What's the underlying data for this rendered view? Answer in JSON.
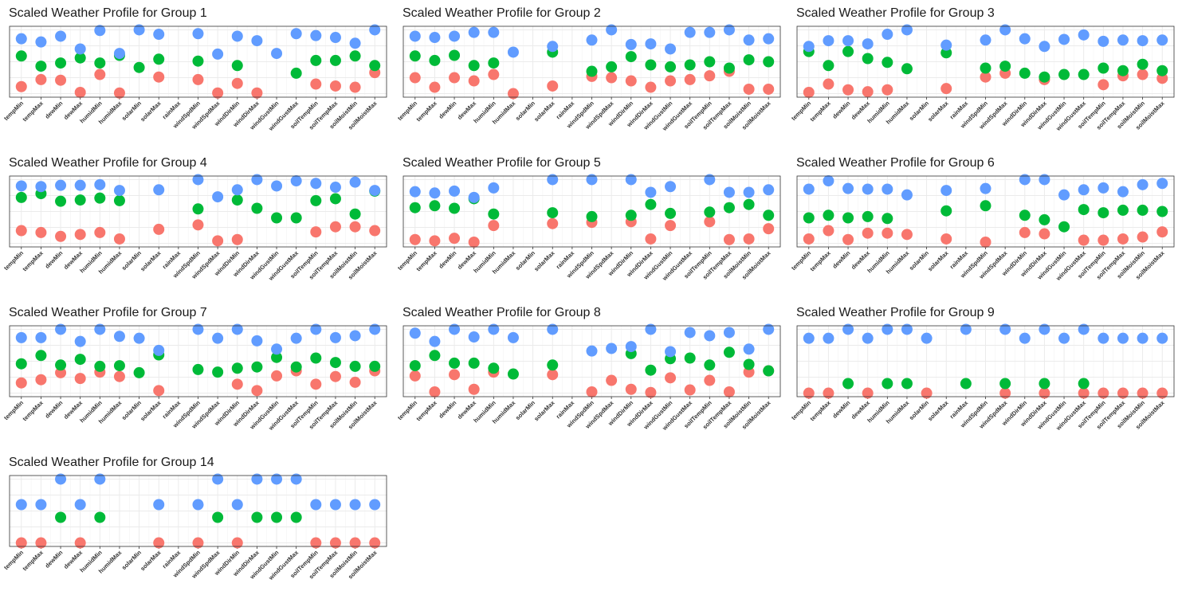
{
  "chart_data": [
    {
      "type": "dot",
      "title": "Scaled Weather Profile for Group 1",
      "categories": [
        "tempMin",
        "tempMax",
        "dewMin",
        "dewMax",
        "humidMin",
        "humidMax",
        "solarMin",
        "solarMax",
        "rainMax",
        "windSpdMin",
        "windSpdMax",
        "windDirMin",
        "windDirMax",
        "windGustMin",
        "windGustMax",
        "soilTempMin",
        "soilTempMax",
        "soilMoistMin",
        "soilMoistMax"
      ],
      "series": [
        {
          "color": "#F8766D",
          "values": [
            0.11,
            0.22,
            0.21,
            0.02,
            0.3,
            0.01,
            null,
            0.26,
            null,
            0.22,
            0.01,
            0.16,
            0.01,
            null,
            null,
            0.15,
            0.12,
            0.1,
            0.33
          ]
        },
        {
          "color": "#00BA38",
          "values": [
            0.59,
            0.43,
            0.48,
            0.56,
            0.48,
            0.6,
            0.41,
            0.54,
            null,
            0.51,
            null,
            0.44,
            null,
            null,
            0.32,
            0.52,
            0.52,
            0.59,
            0.44
          ]
        },
        {
          "color": "#619CFF",
          "values": [
            0.86,
            0.81,
            0.9,
            0.7,
            0.99,
            0.63,
            1.0,
            0.93,
            null,
            0.94,
            0.62,
            0.9,
            0.83,
            0.63,
            0.94,
            0.91,
            0.88,
            0.79,
            1.0
          ]
        }
      ],
      "ylim": [
        0,
        1
      ],
      "yticks": [
        0,
        0.25,
        0.5,
        0.75,
        1
      ],
      "grid": true
    },
    {
      "type": "dot",
      "title": "Scaled Weather Profile for Group 2",
      "categories": [
        "tempMin",
        "tempMax",
        "dewMin",
        "dewMax",
        "humidMin",
        "humidMax",
        "solarMin",
        "solarMax",
        "rainMax",
        "windSpdMin",
        "windSpdMax",
        "windDirMin",
        "windDirMax",
        "windGustMin",
        "windGustMax",
        "soilTempMin",
        "soilTempMax",
        "soilMoistMin",
        "soilMoistMax"
      ],
      "series": [
        {
          "color": "#F8766D",
          "values": [
            0.25,
            0.1,
            0.25,
            0.2,
            0.3,
            0.0,
            null,
            0.12,
            null,
            0.27,
            0.25,
            0.2,
            0.1,
            0.2,
            0.22,
            0.28,
            0.35,
            0.07,
            0.07
          ]
        },
        {
          "color": "#00BA38",
          "values": [
            0.59,
            0.52,
            0.6,
            0.44,
            0.48,
            null,
            null,
            0.65,
            null,
            0.35,
            0.42,
            0.58,
            0.45,
            0.42,
            0.45,
            0.5,
            0.4,
            0.53,
            0.5
          ]
        },
        {
          "color": "#619CFF",
          "values": [
            0.9,
            0.88,
            0.9,
            0.96,
            0.96,
            0.65,
            null,
            0.74,
            null,
            0.84,
            1.0,
            0.77,
            0.78,
            0.7,
            0.96,
            0.96,
            1.0,
            0.84,
            0.86
          ]
        }
      ],
      "ylim": [
        0,
        1
      ],
      "yticks": [
        0,
        0.25,
        0.5,
        0.75,
        1
      ],
      "grid": true
    },
    {
      "type": "dot",
      "title": "Scaled Weather Profile for Group 3",
      "categories": [
        "tempMin",
        "tempMax",
        "dewMin",
        "dewMax",
        "humidMin",
        "humidMax",
        "solarMin",
        "solarMax",
        "rainMax",
        "windSpdMin",
        "windSpdMax",
        "windDirMin",
        "windDirMax",
        "windGustMin",
        "windGustMax",
        "soilTempMin",
        "soilTempMax",
        "soilMoistMin",
        "soilMoistMax"
      ],
      "series": [
        {
          "color": "#F8766D",
          "values": [
            0.02,
            0.15,
            0.06,
            0.03,
            0.06,
            null,
            null,
            0.08,
            null,
            0.26,
            0.32,
            null,
            0.22,
            null,
            null,
            0.14,
            0.28,
            0.3,
            0.24
          ]
        },
        {
          "color": "#00BA38",
          "values": [
            0.66,
            0.44,
            0.66,
            0.55,
            0.49,
            0.39,
            null,
            0.64,
            null,
            0.4,
            0.43,
            0.32,
            0.26,
            0.3,
            0.3,
            0.4,
            0.36,
            0.46,
            0.36
          ]
        },
        {
          "color": "#619CFF",
          "values": [
            0.74,
            0.83,
            0.83,
            0.78,
            0.93,
            1.0,
            null,
            0.76,
            null,
            0.84,
            1.0,
            0.86,
            0.74,
            0.85,
            0.92,
            0.82,
            0.84,
            0.83,
            0.84
          ]
        }
      ],
      "ylim": [
        0,
        1
      ],
      "yticks": [
        0,
        0.25,
        0.5,
        0.75,
        1
      ],
      "grid": true
    },
    {
      "type": "dot",
      "title": "Scaled Weather Profile for Group 4",
      "categories": [
        "tempMin",
        "tempMax",
        "dewMin",
        "dewMax",
        "humidMin",
        "humidMax",
        "solarMin",
        "solarMax",
        "rainMax",
        "windSpdMin",
        "windSpdMax",
        "windDirMin",
        "windDirMax",
        "windGustMin",
        "windGustMax",
        "soilTempMin",
        "soilTempMax",
        "soilMoistMin",
        "soilMoistMax"
      ],
      "series": [
        {
          "color": "#F8766D",
          "values": [
            0.2,
            0.17,
            0.11,
            0.14,
            0.17,
            0.07,
            null,
            0.22,
            null,
            0.29,
            0.04,
            0.06,
            null,
            null,
            null,
            0.18,
            0.26,
            0.26,
            0.2
          ]
        },
        {
          "color": "#00BA38",
          "values": [
            0.72,
            0.78,
            0.66,
            0.68,
            0.71,
            0.67,
            null,
            null,
            null,
            0.54,
            null,
            0.68,
            0.55,
            0.4,
            0.4,
            0.67,
            0.7,
            0.46,
            0.82
          ]
        },
        {
          "color": "#619CFF",
          "values": [
            0.9,
            0.89,
            0.91,
            0.91,
            0.92,
            0.83,
            null,
            0.84,
            null,
            1.0,
            0.73,
            0.84,
            1.0,
            0.9,
            0.98,
            0.94,
            0.88,
            0.96,
            0.83
          ]
        }
      ],
      "ylim": [
        0,
        1
      ],
      "yticks": [
        0,
        0.25,
        0.5,
        0.75,
        1
      ],
      "grid": true
    },
    {
      "type": "dot",
      "title": "Scaled Weather Profile for Group 5",
      "categories": [
        "tempMin",
        "tempMax",
        "dewMin",
        "dewMax",
        "humidMin",
        "humidMax",
        "solarMin",
        "solarMax",
        "rainMax",
        "windSpdMin",
        "windSpdMax",
        "windDirMin",
        "windDirMax",
        "windGustMin",
        "windGustMax",
        "soilTempMin",
        "soilTempMax",
        "soilMoistMin",
        "soilMoistMax"
      ],
      "series": [
        {
          "color": "#F8766D",
          "values": [
            0.06,
            0.04,
            0.08,
            0.02,
            0.28,
            null,
            null,
            0.31,
            null,
            0.33,
            null,
            0.34,
            0.07,
            0.28,
            null,
            0.34,
            0.06,
            0.07,
            0.23
          ]
        },
        {
          "color": "#00BA38",
          "values": [
            0.56,
            0.59,
            0.55,
            0.7,
            0.46,
            null,
            null,
            0.48,
            null,
            0.42,
            null,
            0.44,
            0.61,
            0.47,
            null,
            0.49,
            0.56,
            0.61,
            0.44
          ]
        },
        {
          "color": "#619CFF",
          "values": [
            0.81,
            0.79,
            0.82,
            0.72,
            0.87,
            null,
            null,
            1.0,
            null,
            1.0,
            null,
            1.0,
            0.8,
            0.89,
            null,
            1.0,
            0.8,
            0.8,
            0.84
          ]
        }
      ],
      "ylim": [
        0,
        1
      ],
      "yticks": [
        0,
        0.25,
        0.5,
        0.75,
        1
      ],
      "grid": true
    },
    {
      "type": "dot",
      "title": "Scaled Weather Profile for Group 6",
      "categories": [
        "tempMin",
        "tempMax",
        "dewMin",
        "dewMax",
        "humidMin",
        "humidMax",
        "solarMin",
        "solarMax",
        "rainMax",
        "windSpdMin",
        "windSpdMax",
        "windDirMin",
        "windDirMax",
        "windGustMin",
        "windGustMax",
        "soilTempMin",
        "soilTempMax",
        "soilMoistMin",
        "soilMoistMax"
      ],
      "series": [
        {
          "color": "#F8766D",
          "values": [
            0.07,
            0.2,
            0.06,
            0.16,
            0.16,
            0.14,
            null,
            0.07,
            null,
            0.02,
            null,
            0.17,
            0.15,
            null,
            0.05,
            0.05,
            0.07,
            0.1,
            0.18
          ]
        },
        {
          "color": "#00BA38",
          "values": [
            0.4,
            0.44,
            0.4,
            0.42,
            0.39,
            null,
            null,
            0.51,
            null,
            0.59,
            null,
            0.44,
            0.37,
            0.26,
            0.53,
            0.48,
            0.52,
            0.52,
            0.5
          ]
        },
        {
          "color": "#619CFF",
          "values": [
            0.85,
            0.98,
            0.86,
            0.85,
            0.85,
            0.76,
            null,
            0.83,
            null,
            0.86,
            null,
            1.0,
            1.0,
            0.76,
            0.84,
            0.87,
            0.81,
            0.92,
            0.94
          ]
        }
      ],
      "ylim": [
        0,
        1
      ],
      "yticks": [
        0,
        0.25,
        0.5,
        0.75,
        1
      ],
      "grid": true
    },
    {
      "type": "dot",
      "title": "Scaled Weather Profile for Group 7",
      "categories": [
        "tempMin",
        "tempMax",
        "dewMin",
        "dewMax",
        "humidMin",
        "humidMax",
        "solarMin",
        "solarMax",
        "rainMax",
        "windSpdMin",
        "windSpdMax",
        "windDirMin",
        "windDirMax",
        "windGustMin",
        "windGustMax",
        "soilTempMin",
        "soilTempMax",
        "soilMoistMin",
        "soilMoistMax"
      ],
      "series": [
        {
          "color": "#F8766D",
          "values": [
            0.16,
            0.21,
            0.32,
            0.23,
            0.33,
            0.26,
            null,
            0.04,
            null,
            null,
            null,
            0.14,
            0.04,
            0.27,
            0.35,
            0.14,
            0.26,
            0.17,
            0.35
          ]
        },
        {
          "color": "#00BA38",
          "values": [
            0.46,
            0.59,
            0.44,
            0.53,
            0.42,
            0.43,
            0.32,
            0.6,
            null,
            0.37,
            0.33,
            0.39,
            0.41,
            0.56,
            0.41,
            0.55,
            0.48,
            0.42,
            0.42
          ]
        },
        {
          "color": "#619CFF",
          "values": [
            0.87,
            0.87,
            1.0,
            0.81,
            1.0,
            0.89,
            0.86,
            0.67,
            null,
            1.0,
            0.86,
            1.0,
            0.82,
            0.69,
            0.86,
            1.0,
            0.87,
            0.9,
            1.0
          ]
        }
      ],
      "ylim": [
        0,
        1
      ],
      "yticks": [
        0,
        0.25,
        0.5,
        0.75,
        1
      ],
      "grid": true
    },
    {
      "type": "dot",
      "title": "Scaled Weather Profile for Group 8",
      "categories": [
        "tempMin",
        "tempMax",
        "dewMin",
        "dewMax",
        "humidMin",
        "humidMax",
        "solarMin",
        "solarMax",
        "rainMax",
        "windSpdMin",
        "windSpdMax",
        "windDirMin",
        "windDirMax",
        "windGustMin",
        "windGustMax",
        "soilTempMin",
        "soilTempMax",
        "soilMoistMin",
        "soilMoistMax"
      ],
      "series": [
        {
          "color": "#F8766D",
          "values": [
            0.27,
            0.02,
            0.29,
            0.06,
            0.33,
            null,
            null,
            0.29,
            null,
            0.02,
            0.2,
            0.06,
            0.01,
            0.24,
            0.05,
            0.2,
            0.02,
            0.33,
            0.35
          ]
        },
        {
          "color": "#00BA38",
          "values": [
            0.43,
            0.59,
            0.47,
            0.47,
            0.39,
            0.3,
            null,
            0.44,
            null,
            null,
            null,
            0.62,
            0.36,
            0.54,
            0.55,
            0.44,
            0.64,
            0.45,
            0.35
          ]
        },
        {
          "color": "#619CFF",
          "values": [
            0.94,
            0.81,
            1.0,
            0.88,
            1.0,
            0.87,
            null,
            1.0,
            null,
            0.66,
            0.7,
            0.73,
            1.0,
            0.65,
            0.95,
            0.9,
            0.95,
            0.69,
            1.0
          ]
        }
      ],
      "ylim": [
        0,
        1
      ],
      "yticks": [
        0,
        0.25,
        0.5,
        0.75,
        1
      ],
      "grid": true
    },
    {
      "type": "dot",
      "title": "Scaled Weather Profile for Group 9",
      "categories": [
        "tempMin",
        "tempMax",
        "dewMin",
        "dewMax",
        "humidMin",
        "humidMax",
        "solarMin",
        "solarMax",
        "rainMax",
        "windSpdMin",
        "windSpdMax",
        "windDirMin",
        "windDirMax",
        "windGustMin",
        "windGustMax",
        "soilTempMin",
        "soilTempMax",
        "soilMoistMin",
        "soilMoistMax"
      ],
      "series": [
        {
          "color": "#F8766D",
          "values": [
            0,
            0,
            null,
            0,
            null,
            null,
            0,
            null,
            null,
            null,
            0,
            null,
            0,
            null,
            0,
            0,
            0,
            0,
            0
          ]
        },
        {
          "color": "#00BA38",
          "values": [
            null,
            null,
            0.15,
            null,
            0.15,
            0.15,
            null,
            null,
            0.15,
            null,
            0.15,
            null,
            0.15,
            null,
            0.15,
            null,
            null,
            null,
            null
          ]
        },
        {
          "color": "#619CFF",
          "values": [
            0.86,
            0.86,
            1.0,
            0.86,
            1.0,
            1.0,
            0.86,
            null,
            1.0,
            null,
            1.0,
            0.86,
            1.0,
            0.86,
            1.0,
            0.86,
            0.86,
            0.86,
            0.86
          ]
        }
      ],
      "ylim": [
        0,
        1
      ],
      "yticks": [
        0,
        0.25,
        0.5,
        0.75,
        1
      ],
      "grid": true
    },
    {
      "type": "dot",
      "title": "Scaled Weather Profile for Group 14",
      "categories": [
        "tempMin",
        "tempMax",
        "dewMin",
        "dewMax",
        "humidMin",
        "humidMax",
        "solarMin",
        "solarMax",
        "rainMax",
        "windSpdMin",
        "windSpdMax",
        "windDirMin",
        "windDirMax",
        "windGustMin",
        "windGustMax",
        "soilTempMin",
        "soilTempMax",
        "soilMoistMin",
        "soilMoistMax"
      ],
      "series": [
        {
          "color": "#F8766D",
          "values": [
            0,
            0,
            null,
            0,
            null,
            null,
            null,
            0,
            null,
            0,
            null,
            0,
            null,
            null,
            null,
            0,
            0,
            0,
            0
          ]
        },
        {
          "color": "#00BA38",
          "values": [
            null,
            null,
            0.4,
            null,
            0.4,
            null,
            null,
            null,
            null,
            null,
            0.4,
            null,
            0.4,
            0.4,
            0.4,
            null,
            null,
            null,
            null
          ]
        },
        {
          "color": "#619CFF",
          "values": [
            0.6,
            0.6,
            1.0,
            0.6,
            1.0,
            null,
            null,
            0.6,
            null,
            0.6,
            1.0,
            0.6,
            1.0,
            1.0,
            1.0,
            0.6,
            0.6,
            0.6,
            0.6
          ]
        }
      ],
      "ylim": [
        0,
        1
      ],
      "yticks": [
        0,
        0.25,
        0.5,
        0.75,
        1
      ],
      "grid": true
    }
  ]
}
